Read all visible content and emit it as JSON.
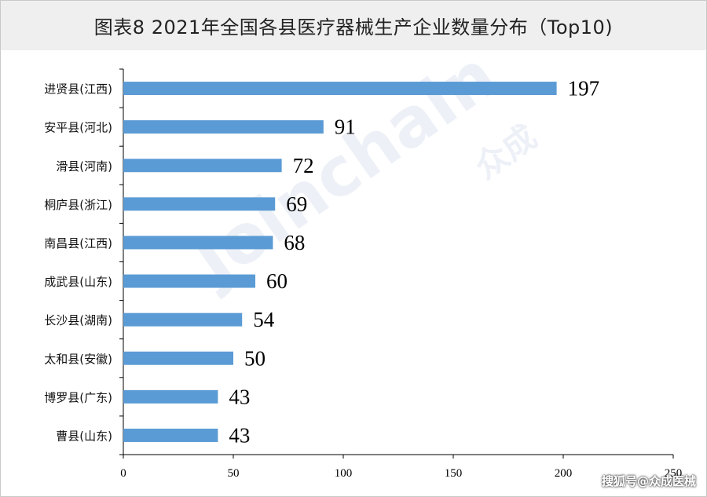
{
  "title": "图表8  2021年全国各县医疗器械生产企业数量分布（Top10)",
  "watermark": {
    "main": "Joinchain",
    "sub": "众成"
  },
  "source_credit": "搜狐号@众成医械",
  "colors": {
    "bar": "#5b9bd5",
    "axis": "#000000",
    "title_bg": "#efefef"
  },
  "chart_data": {
    "type": "bar",
    "orientation": "horizontal",
    "categories": [
      "进贤县(江西)",
      "安平县(河北)",
      "滑县(河南)",
      "桐庐县(浙江)",
      "南昌县(江西)",
      "成武县(山东)",
      "长沙县(湖南)",
      "太和县(安徽)",
      "博罗县(广东)",
      "曹县(山东)"
    ],
    "values": [
      197,
      91,
      72,
      69,
      68,
      60,
      54,
      50,
      43,
      43
    ],
    "xlim": [
      0,
      250
    ],
    "xticks": [
      "0",
      "50",
      "100",
      "150",
      "200",
      "250"
    ],
    "grid": false,
    "legend": "none"
  }
}
